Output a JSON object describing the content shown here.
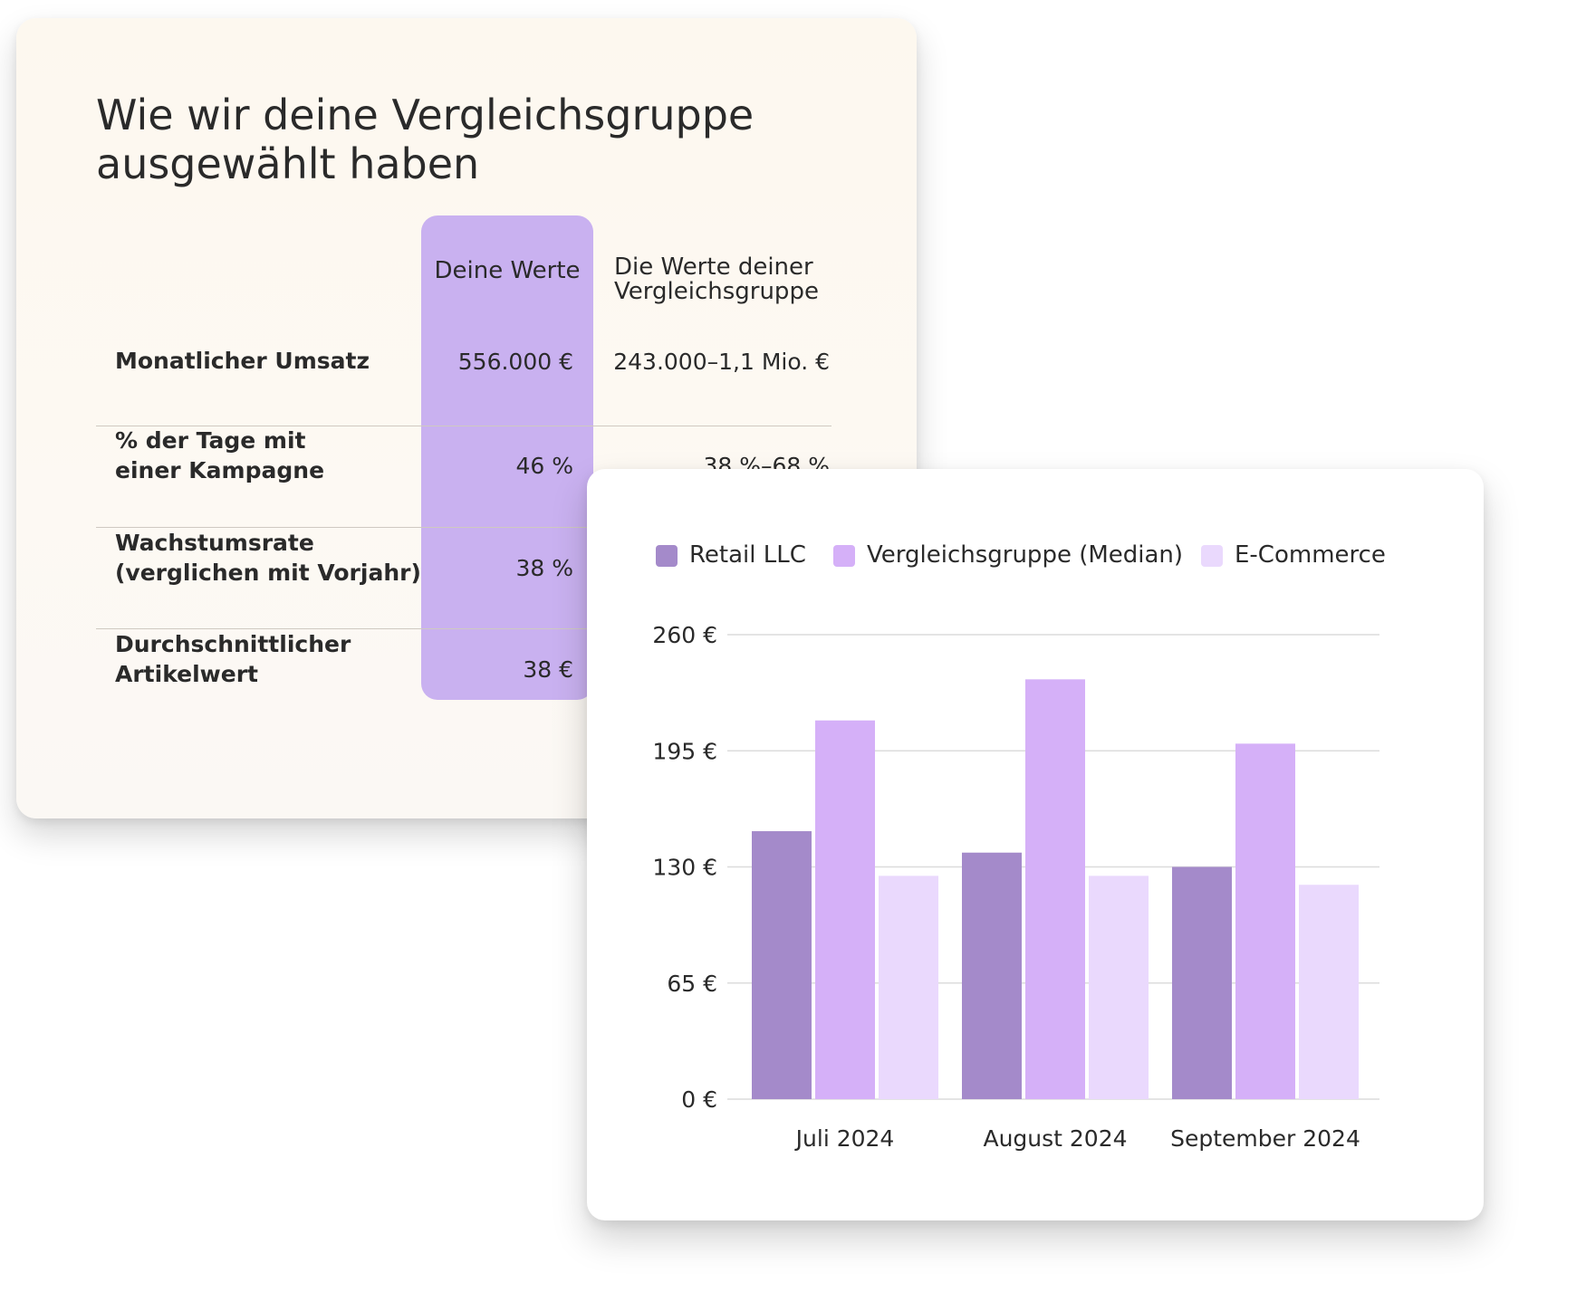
{
  "comparison": {
    "title": "Wie wir deine Vergleichsgruppe ausgewählt haben",
    "col_yours": "Deine Werte",
    "col_peers": "Die Werte deiner Vergleichsgruppe",
    "rows": [
      {
        "label": "Monatlicher Umsatz",
        "yours": "556.000 €",
        "peers": "243.000–1,1 Mio. €"
      },
      {
        "label": "% der Tage mit\neiner Kampagne",
        "yours": "46 %",
        "peers": "38 %–68 %"
      },
      {
        "label": "Wachstumsrate\n(verglichen mit Vorjahr)",
        "yours": "38 %",
        "peers": ""
      },
      {
        "label": "Durchschnittlicher\nArtikelwert",
        "yours": "38 €",
        "peers": ""
      }
    ],
    "highlight_color": "#c9b1f0"
  },
  "chart_data": {
    "type": "bar",
    "title": "",
    "xlabel": "",
    "ylabel": "",
    "categories": [
      "Juli 2024",
      "August 2024",
      "September 2024"
    ],
    "series": [
      {
        "name": "Retail LLC",
        "values": [
          150,
          138,
          130
        ],
        "color": "#a48aca"
      },
      {
        "name": "Vergleichsgruppe (Median)",
        "values": [
          212,
          235,
          199
        ],
        "color": "#d5b0f8"
      },
      {
        "name": "E-Commerce",
        "values": [
          125,
          125,
          120
        ],
        "color": "#ead9fd"
      }
    ],
    "ylim": [
      0,
      260
    ],
    "yticks": [
      0,
      65,
      130,
      195,
      260
    ],
    "ytick_labels": [
      "0 €",
      "65 €",
      "130 €",
      "195 €",
      "260 €"
    ],
    "grid": true,
    "legend_position": "top"
  }
}
